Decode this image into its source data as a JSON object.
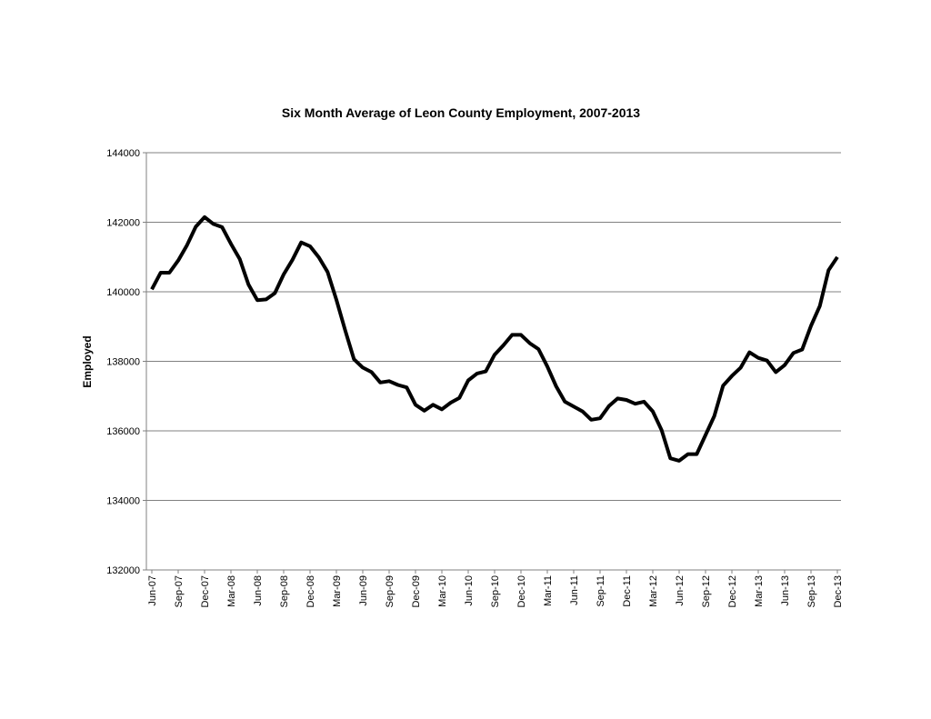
{
  "chart_data": {
    "type": "line",
    "title": "Six Month Average of Leon County Employment, 2007-2013",
    "xlabel": "",
    "ylabel": "Employed",
    "ylim": [
      132000,
      144000
    ],
    "y_ticks": [
      "132000",
      "134000",
      "136000",
      "138000",
      "140000",
      "142000",
      "144000"
    ],
    "grid": true,
    "legend": "none",
    "x_tick_labels": [
      "Jun-07",
      "Sep-07",
      "Dec-07",
      "Mar-08",
      "Jun-08",
      "Sep-08",
      "Dec-08",
      "Mar-09",
      "Jun-09",
      "Sep-09",
      "Dec-09",
      "Mar-10",
      "Jun-10",
      "Sep-10",
      "Dec-10",
      "Mar-11",
      "Jun-11",
      "Sep-11",
      "Dec-11",
      "Mar-12",
      "Jun-12",
      "Sep-12",
      "Dec-12",
      "Mar-13",
      "Jun-13",
      "Sep-13",
      "Dec-13"
    ],
    "series": [
      {
        "name": "Employed",
        "color": "#000000",
        "start": "Jun-07",
        "frequency": "monthly",
        "values": [
          140070,
          140550,
          140550,
          140900,
          141340,
          141870,
          142150,
          141950,
          141860,
          141380,
          140940,
          140210,
          139760,
          139780,
          139960,
          140500,
          140920,
          141420,
          141310,
          140990,
          140570,
          139770,
          138890,
          138060,
          137820,
          137690,
          137390,
          137430,
          137320,
          137250,
          136750,
          136580,
          136750,
          136620,
          136810,
          136950,
          137450,
          137650,
          137710,
          138190,
          138460,
          138760,
          138760,
          138520,
          138350,
          137850,
          137280,
          136840,
          136700,
          136560,
          136320,
          136360,
          136710,
          136930,
          136890,
          136780,
          136840,
          136560,
          136020,
          135210,
          135140,
          135330,
          135330,
          135880,
          136430,
          137300,
          137580,
          137820,
          138260,
          138100,
          138020,
          137690,
          137890,
          138240,
          138340,
          139020,
          139590,
          140620,
          141000
        ]
      }
    ]
  }
}
